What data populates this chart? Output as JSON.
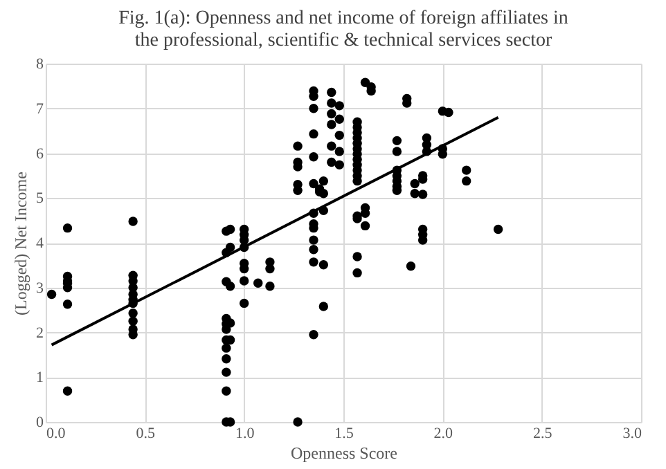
{
  "chart_data": {
    "type": "scatter",
    "title": "Fig. 1(a): Openness and net income of foreign affiliates in\nthe professional, scientific & technical services sector",
    "xlabel": "Openness Score",
    "ylabel": "(Logged) Net Income",
    "xlim": [
      0,
      3
    ],
    "ylim": [
      0,
      8
    ],
    "xticks": [
      {
        "value": 0,
        "label": "0.0"
      },
      {
        "value": 0.5,
        "label": "0.5"
      },
      {
        "value": 1,
        "label": "1.0"
      },
      {
        "value": 1.5,
        "label": "1.5"
      },
      {
        "value": 2,
        "label": "2.0"
      },
      {
        "value": 2.5,
        "label": "2.5"
      },
      {
        "value": 3,
        "label": "3.0"
      }
    ],
    "yticks": [
      0,
      1,
      2,
      3,
      4,
      5,
      6,
      7,
      8
    ],
    "grid": true,
    "series": [
      {
        "color": "#000000",
        "marker": "circle",
        "x": [
          0.03,
          0.11,
          0.11,
          0.11,
          0.11,
          0.11,
          0.11,
          0.11,
          0.44,
          0.44,
          0.44,
          0.44,
          0.44,
          0.44,
          0.44,
          0.44,
          0.44,
          0.44,
          0.44,
          0.91,
          0.91,
          0.91,
          0.91,
          0.91,
          0.91,
          0.91,
          0.91,
          0.91,
          0.91,
          0.91,
          0.91,
          0.93,
          0.93,
          0.93,
          0.93,
          0.93,
          0.93,
          1.0,
          1.0,
          1.0,
          1.0,
          1.0,
          1.0,
          1.0,
          1.0,
          1.07,
          1.13,
          1.13,
          1.13,
          1.27,
          1.27,
          1.27,
          1.27,
          1.27,
          1.27,
          1.35,
          1.35,
          1.35,
          1.35,
          1.35,
          1.35,
          1.35,
          1.35,
          1.35,
          1.35,
          1.35,
          1.35,
          1.35,
          1.38,
          1.38,
          1.4,
          1.4,
          1.4,
          1.4,
          1.4,
          1.44,
          1.44,
          1.44,
          1.44,
          1.44,
          1.44,
          1.48,
          1.48,
          1.48,
          1.48,
          1.48,
          1.57,
          1.57,
          1.57,
          1.57,
          1.57,
          1.57,
          1.57,
          1.57,
          1.57,
          1.57,
          1.57,
          1.57,
          1.57,
          1.57,
          1.57,
          1.57,
          1.61,
          1.61,
          1.61,
          1.61,
          1.64,
          1.64,
          1.77,
          1.77,
          1.77,
          1.77,
          1.77,
          1.77,
          1.77,
          1.82,
          1.82,
          1.84,
          1.86,
          1.86,
          1.9,
          1.9,
          1.9,
          1.9,
          1.9,
          1.9,
          1.92,
          1.92,
          1.92,
          2.0,
          2.0,
          2.0,
          2.03,
          2.12,
          2.12,
          2.28
        ],
        "values": [
          2.85,
          4.33,
          3.25,
          3.15,
          3.1,
          3.0,
          2.63,
          0.69,
          4.48,
          3.27,
          3.15,
          3.0,
          2.85,
          2.73,
          2.65,
          2.43,
          2.25,
          2.07,
          1.95,
          4.26,
          3.78,
          3.13,
          2.31,
          2.19,
          2.07,
          1.83,
          1.65,
          1.41,
          1.11,
          0.69,
          0,
          4.3,
          3.9,
          3.03,
          2.21,
          1.83,
          0,
          4.3,
          4.18,
          4.06,
          3.9,
          3.54,
          3.42,
          3.15,
          2.65,
          3.1,
          3.57,
          3.42,
          3.03,
          6.16,
          5.8,
          5.7,
          5.3,
          5.17,
          0,
          7.39,
          7.27,
          7.0,
          6.43,
          5.92,
          5.32,
          4.66,
          4.42,
          4.33,
          4.06,
          3.85,
          3.57,
          1.95,
          5.2,
          5.14,
          3.51,
          2.58,
          5.38,
          5.1,
          4.72,
          7.36,
          7.12,
          6.88,
          6.64,
          6.16,
          5.8,
          7.06,
          6.76,
          6.4,
          6.04,
          5.74,
          6.7,
          6.58,
          6.46,
          6.34,
          6.22,
          6.1,
          5.98,
          5.86,
          5.74,
          5.62,
          5.5,
          5.38,
          4.6,
          4.54,
          3.69,
          3.33,
          7.58,
          4.78,
          4.66,
          4.38,
          7.48,
          7.39,
          6.28,
          6.04,
          5.62,
          5.5,
          5.38,
          5.26,
          5.17,
          7.22,
          7.12,
          3.48,
          5.32,
          5.1,
          5.5,
          5.42,
          5.08,
          4.3,
          4.18,
          4.06,
          6.34,
          6.19,
          6.04,
          6.94,
          6.1,
          5.98,
          6.91,
          5.62,
          5.38,
          4.3
        ]
      },
      {
        "type": "line",
        "color": "#000000",
        "x": [
          0.03,
          2.28
        ],
        "values": [
          1.72,
          6.8
        ]
      }
    ]
  }
}
